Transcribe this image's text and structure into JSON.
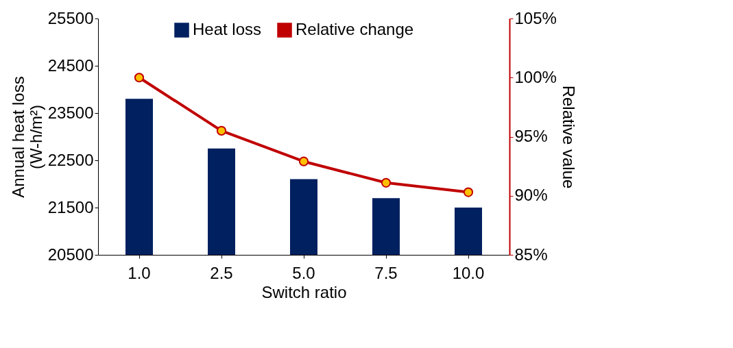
{
  "chart_data": {
    "type": "bar",
    "xlabel": "Switch ratio",
    "ylabel": "Annual heat loss\n(W-h/m²)",
    "y2label": "Relative value",
    "categories": [
      "1.0",
      "2.5",
      "5.0",
      "7.5",
      "10.0"
    ],
    "series": [
      {
        "name": "Heat loss",
        "color": "#002060",
        "values": [
          23800,
          22750,
          22100,
          21700,
          21500
        ]
      },
      {
        "name": "Relative change",
        "type": "line",
        "axis": "y2",
        "color": "#c00000",
        "values": [
          100,
          95.5,
          92.9,
          91.1,
          90.3
        ]
      }
    ],
    "ylim": [
      20500,
      25500
    ],
    "yticks": [
      20500,
      21500,
      22500,
      23500,
      24500,
      25500
    ],
    "y2lim": [
      85,
      105
    ],
    "y2ticks": [
      {
        "value": 85,
        "label": "85%"
      },
      {
        "value": 90,
        "label": "90%"
      },
      {
        "value": 95,
        "label": "95%"
      },
      {
        "value": 100,
        "label": "100%"
      },
      {
        "value": 105,
        "label": "105%"
      }
    ],
    "legend": "top",
    "marker": "circle"
  }
}
